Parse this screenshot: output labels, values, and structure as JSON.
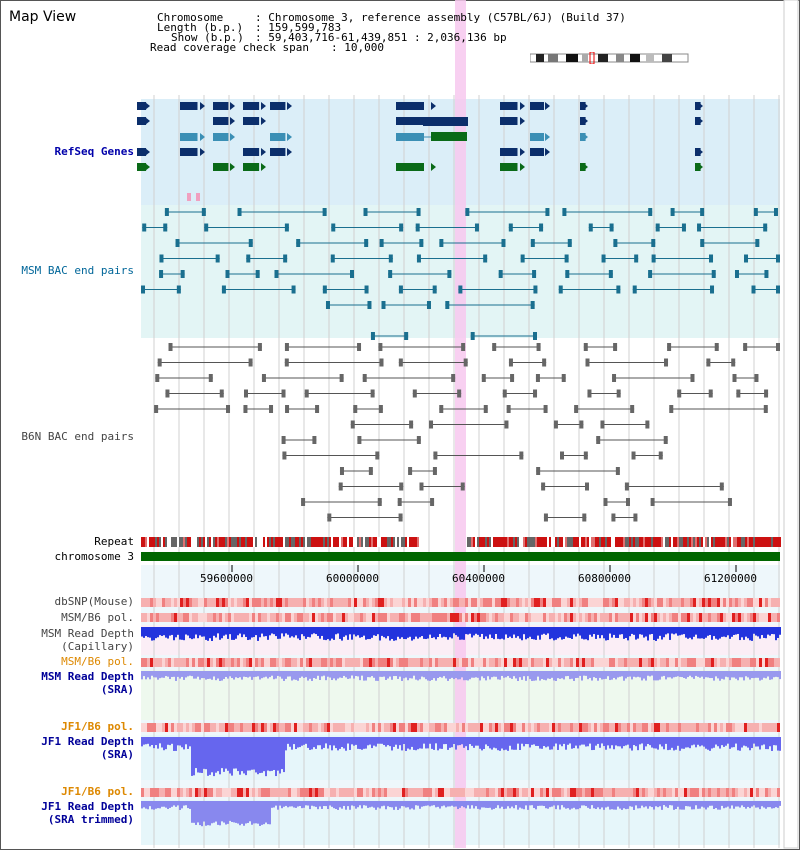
{
  "title": "Map View",
  "info": {
    "chromosome_key": "Chromosome",
    "chromosome_val": ": Chromosome 3, reference assembly (C57BL/6J) (Build 37)",
    "length_key": "Length (b.p.)",
    "length_val": ": 159,599,783",
    "show_key": "Show (b.p.)",
    "show_val": ": 59,403,716-61,439,851 : 2,036,136 bp",
    "coverage_key": "Read coverage check span",
    "coverage_val": ": 10,000"
  },
  "tracks": {
    "refseq": "RefSeq Genes",
    "msm_bac": "MSM BAC end pairs",
    "b6n_bac": "B6N BAC end pairs",
    "repeat": "Repeat",
    "chromosome": "chromosome 3",
    "dbsnp": "dbSNP(Mouse)",
    "msm_b6_pol_1": "MSM/B6 pol.",
    "msm_depth_cap_1": "MSM Read Depth",
    "msm_depth_cap_2": "(Capillary)",
    "msm_b6_pol_2": "MSM/B6 pol.",
    "msm_depth_sra_1": "MSM Read Depth",
    "msm_depth_sra_2": "(SRA)",
    "jf1_b6_pol_1": "JF1/B6 pol.",
    "jf1_depth_sra_1": "JF1 Read Depth",
    "jf1_depth_sra_2": "(SRA)",
    "jf1_b6_pol_2": "JF1/B6 pol.",
    "jf1_depth_trim_1": "JF1 Read Depth",
    "jf1_depth_trim_2": "(SRA trimmed)"
  },
  "axis": {
    "ticks": [
      "59600000",
      "60000000",
      "60400000",
      "60800000",
      "61200000"
    ],
    "range": [
      59403716,
      61439851
    ]
  },
  "colors": {
    "refseq_label": "#0000aa",
    "msm_label": "#006699",
    "b6n_label": "#444444",
    "pol_orange": "#dd8800",
    "depth_blue": "#000099",
    "highlight": "#f7c8ef"
  }
}
